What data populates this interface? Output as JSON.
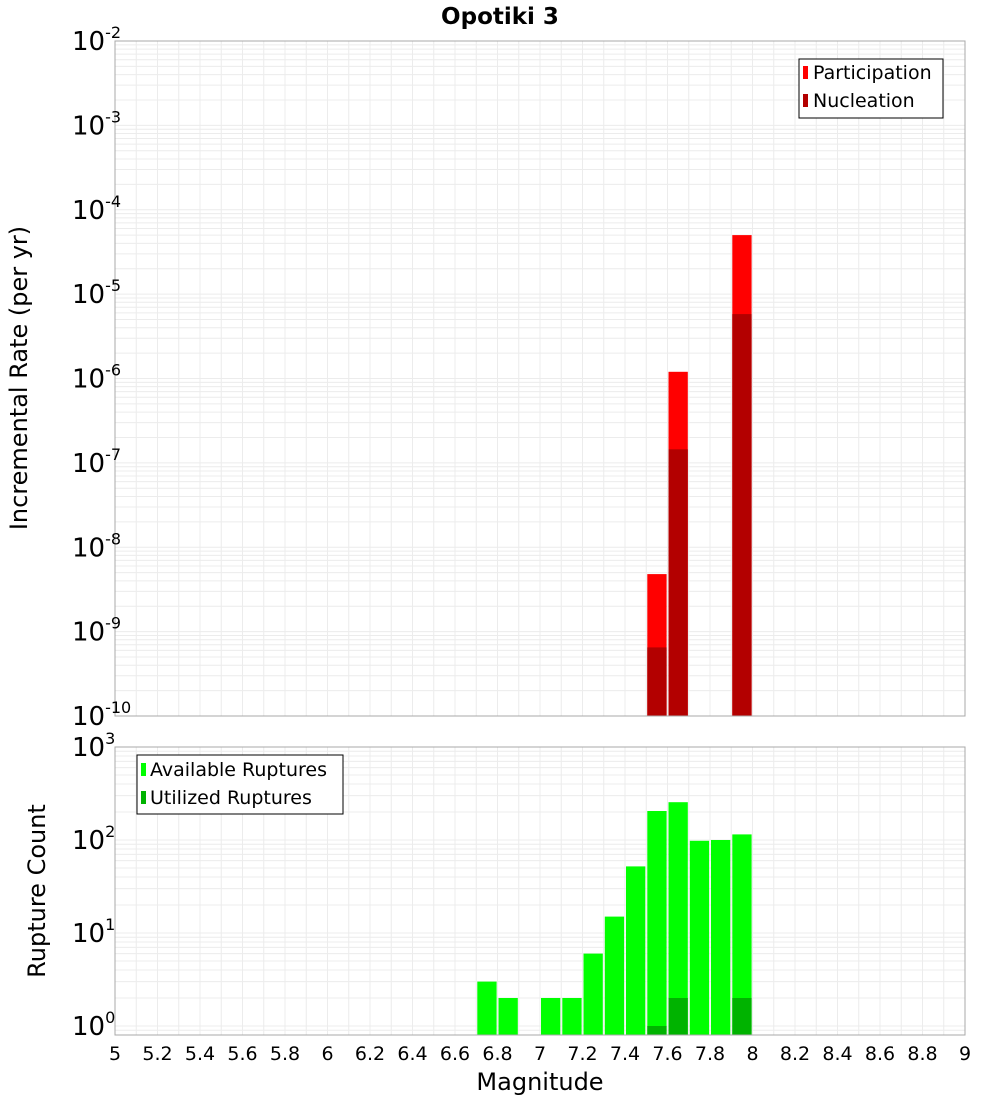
{
  "chart_data": [
    {
      "type": "bar",
      "title": "Opotiki 3",
      "ylabel": "Incremental Rate (per yr)",
      "xlabel": "",
      "yscale": "log",
      "ylim": [
        1e-10,
        0.01
      ],
      "xlim": [
        5,
        9
      ],
      "grid": true,
      "legend_position": "top-right",
      "y_ticks": [
        {
          "base": "10",
          "exp": "-2"
        },
        {
          "base": "10",
          "exp": "-3"
        },
        {
          "base": "10",
          "exp": "-4"
        },
        {
          "base": "10",
          "exp": "-5"
        },
        {
          "base": "10",
          "exp": "-6"
        },
        {
          "base": "10",
          "exp": "-7"
        },
        {
          "base": "10",
          "exp": "-8"
        },
        {
          "base": "10",
          "exp": "-9"
        },
        {
          "base": "10",
          "exp": "-10"
        }
      ],
      "series": [
        {
          "name": "Participation",
          "color": "#ff0000",
          "points": [
            {
              "x": 7.55,
              "y": 4.8e-09
            },
            {
              "x": 7.65,
              "y": 1.2e-06
            },
            {
              "x": 7.95,
              "y": 5e-05
            }
          ]
        },
        {
          "name": "Nucleation",
          "color": "#b30000",
          "points": [
            {
              "x": 7.55,
              "y": 6.5e-10
            },
            {
              "x": 7.65,
              "y": 1.45e-07
            },
            {
              "x": 7.95,
              "y": 5.8e-06
            }
          ]
        }
      ]
    },
    {
      "type": "bar",
      "title": "",
      "ylabel": "Rupture Count",
      "xlabel": "Magnitude",
      "yscale": "log",
      "ylim": [
        0.8,
        1000
      ],
      "xlim": [
        5,
        9
      ],
      "grid": true,
      "legend_position": "top-left",
      "y_ticks": [
        {
          "base": "10",
          "exp": "3"
        },
        {
          "base": "10",
          "exp": "2"
        },
        {
          "base": "10",
          "exp": "1"
        },
        {
          "base": "10",
          "exp": "0"
        }
      ],
      "x_ticks": [
        "5",
        "5.2",
        "5.4",
        "5.6",
        "5.8",
        "6",
        "6.2",
        "6.4",
        "6.6",
        "6.8",
        "7",
        "7.2",
        "7.4",
        "7.6",
        "7.8",
        "8",
        "8.2",
        "8.4",
        "8.6",
        "8.8",
        "9"
      ],
      "series": [
        {
          "name": "Available Ruptures",
          "color": "#00ff00",
          "points": [
            {
              "x": 6.75,
              "y": 3
            },
            {
              "x": 6.85,
              "y": 2
            },
            {
              "x": 7.05,
              "y": 2
            },
            {
              "x": 7.15,
              "y": 2
            },
            {
              "x": 7.25,
              "y": 6
            },
            {
              "x": 7.35,
              "y": 15
            },
            {
              "x": 7.45,
              "y": 52
            },
            {
              "x": 7.55,
              "y": 205
            },
            {
              "x": 7.65,
              "y": 255
            },
            {
              "x": 7.75,
              "y": 98
            },
            {
              "x": 7.85,
              "y": 100
            },
            {
              "x": 7.95,
              "y": 115
            }
          ]
        },
        {
          "name": "Utilized Ruptures",
          "color": "#00b300",
          "points": [
            {
              "x": 7.55,
              "y": 1
            },
            {
              "x": 7.65,
              "y": 2
            },
            {
              "x": 7.95,
              "y": 2
            }
          ]
        }
      ]
    }
  ]
}
